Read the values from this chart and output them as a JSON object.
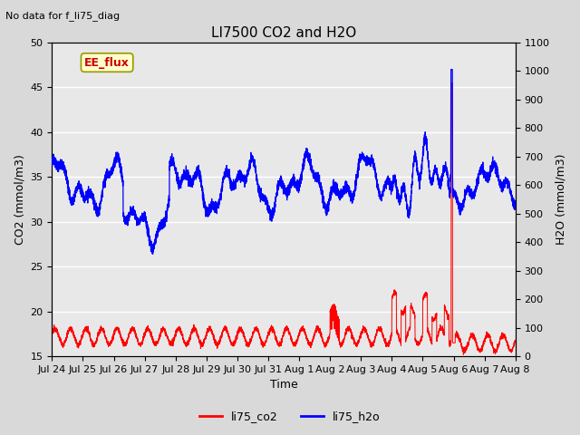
{
  "title": "LI7500 CO2 and H2O",
  "top_left_text": "No data for f_li75_diag",
  "xlabel": "Time",
  "ylabel_left": "CO2 (mmol/m3)",
  "ylabel_right": "H2O (mmol/m3)",
  "ylim_left": [
    15,
    50
  ],
  "ylim_right": [
    0,
    1100
  ],
  "co2_color": "#ff0000",
  "h2o_color": "#0000ff",
  "background_color": "#d9d9d9",
  "plot_bg_color": "#e8e8e8",
  "grid_color": "#ffffff",
  "annotation_box_text": "EE_flux",
  "annotation_box_color": "#ffffcc",
  "annotation_box_edge": "#999900",
  "legend_labels": [
    "li75_co2",
    "li75_h2o"
  ],
  "xtick_labels": [
    "Jul 24",
    "Jul 25",
    "Jul 26",
    "Jul 27",
    "Jul 28",
    "Jul 29",
    "Jul 30",
    "Jul 31",
    "Aug 1",
    "Aug 2",
    "Aug 3",
    "Aug 4",
    "Aug 5",
    "Aug 6",
    "Aug 7",
    "Aug 8"
  ],
  "title_fontsize": 11,
  "label_fontsize": 9,
  "tick_fontsize": 8
}
